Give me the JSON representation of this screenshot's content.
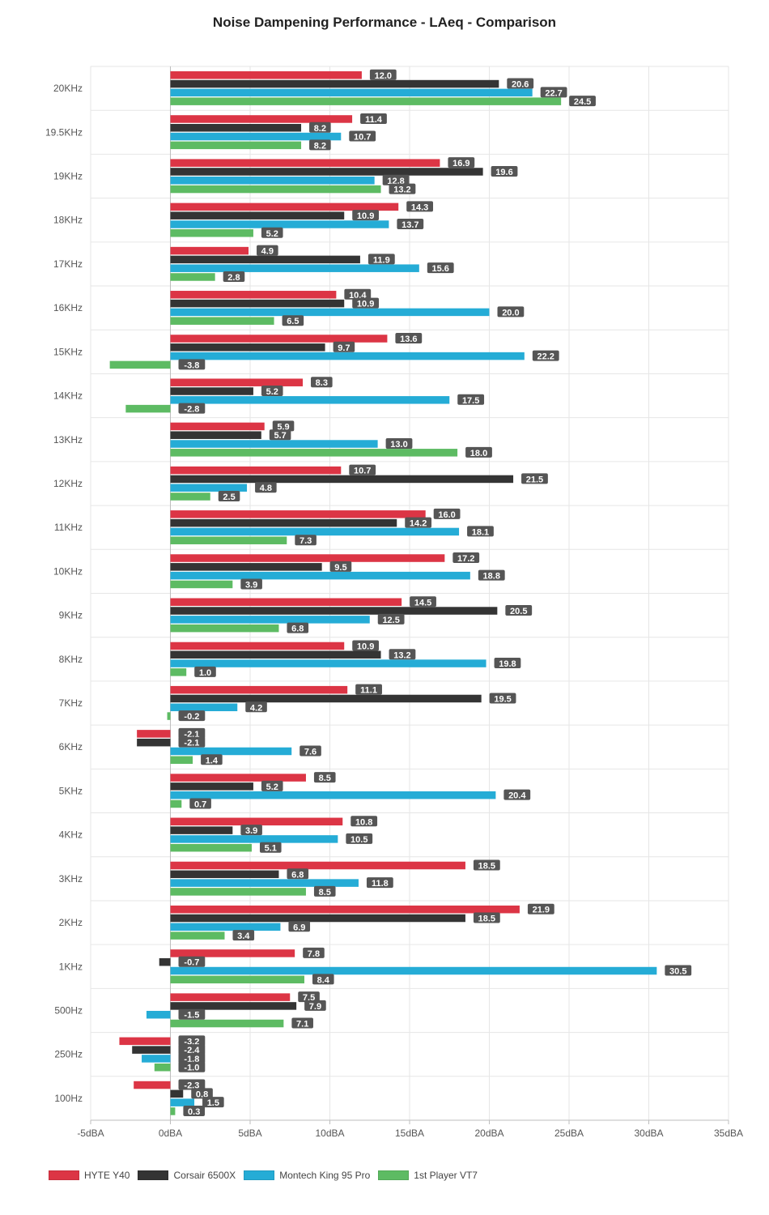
{
  "chart_data": {
    "type": "bar",
    "orientation": "horizontal",
    "title": "Noise Dampening Performance - LAeq - Comparison",
    "categories": [
      "20KHz",
      "19.5KHz",
      "19KHz",
      "18KHz",
      "17KHz",
      "16KHz",
      "15KHz",
      "14KHz",
      "13KHz",
      "12KHz",
      "11KHz",
      "10KHz",
      "9KHz",
      "8KHz",
      "7KHz",
      "6KHz",
      "5KHz",
      "4KHz",
      "3KHz",
      "2KHz",
      "1KHz",
      "500Hz",
      "250Hz",
      "100Hz"
    ],
    "xlim": [
      -5,
      35
    ],
    "xticks": [
      -5,
      0,
      5,
      10,
      15,
      20,
      25,
      30,
      35
    ],
    "xtick_labels": [
      "-5dBA",
      "0dBA",
      "5dBA",
      "10dBA",
      "15dBA",
      "20dBA",
      "25dBA",
      "30dBA",
      "35dBA"
    ],
    "grid": true,
    "legend_position": "bottom-left",
    "series": [
      {
        "name": "HYTE Y40",
        "color": "#dc3545",
        "values": [
          12.0,
          11.4,
          16.9,
          14.3,
          4.9,
          10.4,
          13.6,
          8.3,
          5.9,
          10.7,
          16.0,
          17.2,
          14.5,
          10.9,
          11.1,
          -2.1,
          8.5,
          10.8,
          18.5,
          21.9,
          7.8,
          7.5,
          -3.2,
          -2.3
        ]
      },
      {
        "name": "Corsair 6500X",
        "color": "#343434",
        "values": [
          20.6,
          8.2,
          19.6,
          10.9,
          11.9,
          10.9,
          9.7,
          5.2,
          5.7,
          21.5,
          14.2,
          9.5,
          20.5,
          13.2,
          19.5,
          -2.1,
          5.2,
          3.9,
          6.8,
          18.5,
          -0.7,
          7.9,
          -2.4,
          0.8
        ]
      },
      {
        "name": "Montech King 95 Pro",
        "color": "#25acd6",
        "values": [
          22.7,
          10.7,
          12.8,
          13.7,
          15.6,
          20.0,
          22.2,
          17.5,
          13.0,
          4.8,
          18.1,
          18.8,
          12.5,
          19.8,
          4.2,
          7.6,
          20.4,
          10.5,
          11.8,
          6.9,
          30.5,
          -1.5,
          -1.8,
          1.5
        ]
      },
      {
        "name": "1st Player VT7",
        "color": "#5dbb63",
        "values": [
          24.5,
          8.2,
          13.2,
          5.2,
          2.8,
          6.5,
          -3.8,
          -2.8,
          18.0,
          2.5,
          7.3,
          3.9,
          6.8,
          1.0,
          -0.2,
          1.4,
          0.7,
          5.1,
          8.5,
          3.4,
          8.4,
          7.1,
          -1.0,
          0.3
        ]
      }
    ]
  }
}
